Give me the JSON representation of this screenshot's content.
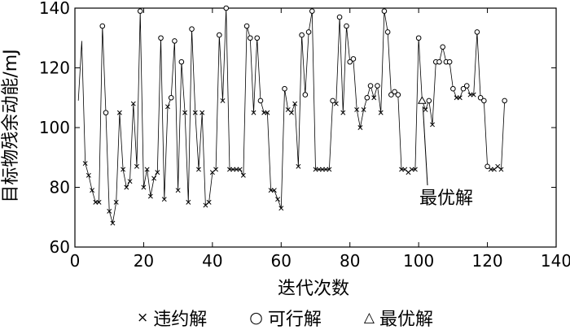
{
  "chart_data": {
    "type": "scatter",
    "xlabel": "迭代次数",
    "ylabel": "目标物残余动能/mJ",
    "xlim": [
      0,
      140
    ],
    "ylim": [
      60,
      140
    ],
    "xticks": [
      0,
      20,
      40,
      60,
      80,
      100,
      120,
      140
    ],
    "yticks": [
      60,
      80,
      100,
      120,
      140
    ],
    "grid": false,
    "legend_position": "bottom",
    "annotation": {
      "text": "最优解",
      "x": 101,
      "y": 109
    },
    "line": [
      [
        1,
        109
      ],
      [
        2,
        129
      ],
      [
        3,
        88
      ],
      [
        4,
        84
      ],
      [
        5,
        79
      ],
      [
        6,
        75
      ],
      [
        7,
        75
      ],
      [
        8,
        134
      ],
      [
        9,
        105
      ],
      [
        10,
        72
      ],
      [
        11,
        68
      ],
      [
        12,
        75
      ],
      [
        13,
        105
      ],
      [
        14,
        86
      ],
      [
        15,
        80
      ],
      [
        16,
        82
      ],
      [
        17,
        108
      ],
      [
        18,
        87
      ],
      [
        19,
        139
      ],
      [
        20,
        80
      ],
      [
        21,
        86
      ],
      [
        22,
        77
      ],
      [
        23,
        83
      ],
      [
        24,
        85
      ],
      [
        25,
        130
      ],
      [
        26,
        76
      ],
      [
        27,
        107
      ],
      [
        28,
        110
      ],
      [
        29,
        129
      ],
      [
        30,
        79
      ],
      [
        31,
        122
      ],
      [
        32,
        105
      ],
      [
        33,
        75
      ],
      [
        34,
        133
      ],
      [
        35,
        105
      ],
      [
        36,
        86
      ],
      [
        37,
        105
      ],
      [
        38,
        74
      ],
      [
        39,
        75
      ],
      [
        40,
        85
      ],
      [
        41,
        86
      ],
      [
        42,
        131
      ],
      [
        43,
        109
      ],
      [
        44,
        140
      ],
      [
        45,
        86
      ],
      [
        46,
        86
      ],
      [
        47,
        86
      ],
      [
        48,
        86
      ],
      [
        49,
        84
      ],
      [
        50,
        134
      ],
      [
        51,
        130
      ],
      [
        52,
        105
      ],
      [
        53,
        130
      ],
      [
        54,
        109
      ],
      [
        55,
        105
      ],
      [
        56,
        105
      ],
      [
        57,
        79
      ],
      [
        58,
        79
      ],
      [
        59,
        76
      ],
      [
        60,
        73
      ],
      [
        61,
        113
      ],
      [
        62,
        106
      ],
      [
        63,
        105
      ],
      [
        64,
        108
      ],
      [
        65,
        87
      ],
      [
        66,
        131
      ],
      [
        67,
        111
      ],
      [
        68,
        132
      ],
      [
        69,
        139
      ],
      [
        70,
        86
      ],
      [
        71,
        86
      ],
      [
        72,
        86
      ],
      [
        73,
        86
      ],
      [
        74,
        86
      ],
      [
        75,
        109
      ],
      [
        76,
        108
      ],
      [
        77,
        137
      ],
      [
        78,
        105
      ],
      [
        79,
        134
      ],
      [
        80,
        122
      ],
      [
        81,
        123
      ],
      [
        82,
        106
      ],
      [
        83,
        100
      ],
      [
        84,
        106
      ],
      [
        85,
        110
      ],
      [
        86,
        114
      ],
      [
        87,
        110
      ],
      [
        88,
        114
      ],
      [
        89,
        105
      ],
      [
        90,
        139
      ],
      [
        91,
        132
      ],
      [
        92,
        111
      ],
      [
        93,
        112
      ],
      [
        94,
        111
      ],
      [
        95,
        86
      ],
      [
        96,
        86
      ],
      [
        97,
        85
      ],
      [
        98,
        86
      ],
      [
        99,
        86
      ],
      [
        100,
        130
      ],
      [
        101,
        109
      ],
      [
        102,
        106
      ],
      [
        103,
        109
      ],
      [
        104,
        101
      ],
      [
        105,
        122
      ],
      [
        106,
        122
      ],
      [
        107,
        127
      ],
      [
        108,
        122
      ],
      [
        109,
        122
      ],
      [
        110,
        113
      ],
      [
        111,
        110
      ],
      [
        112,
        110
      ],
      [
        113,
        113
      ],
      [
        114,
        114
      ],
      [
        115,
        111
      ],
      [
        116,
        111
      ],
      [
        117,
        132
      ],
      [
        118,
        110
      ],
      [
        119,
        109
      ],
      [
        120,
        87
      ],
      [
        121,
        86
      ],
      [
        122,
        86
      ],
      [
        123,
        87
      ],
      [
        124,
        86
      ],
      [
        125,
        109
      ]
    ],
    "series": [
      {
        "name": "违约解",
        "marker": "x",
        "points": [
          [
            3,
            88
          ],
          [
            4,
            84
          ],
          [
            5,
            79
          ],
          [
            6,
            75
          ],
          [
            7,
            75
          ],
          [
            10,
            72
          ],
          [
            11,
            68
          ],
          [
            12,
            75
          ],
          [
            13,
            105
          ],
          [
            14,
            86
          ],
          [
            15,
            80
          ],
          [
            16,
            82
          ],
          [
            17,
            108
          ],
          [
            18,
            87
          ],
          [
            20,
            80
          ],
          [
            21,
            86
          ],
          [
            22,
            77
          ],
          [
            23,
            83
          ],
          [
            24,
            85
          ],
          [
            26,
            76
          ],
          [
            27,
            107
          ],
          [
            30,
            79
          ],
          [
            32,
            105
          ],
          [
            33,
            75
          ],
          [
            35,
            105
          ],
          [
            36,
            86
          ],
          [
            37,
            105
          ],
          [
            38,
            74
          ],
          [
            39,
            75
          ],
          [
            40,
            85
          ],
          [
            41,
            86
          ],
          [
            43,
            109
          ],
          [
            45,
            86
          ],
          [
            46,
            86
          ],
          [
            47,
            86
          ],
          [
            48,
            86
          ],
          [
            49,
            84
          ],
          [
            52,
            105
          ],
          [
            55,
            105
          ],
          [
            56,
            105
          ],
          [
            57,
            79
          ],
          [
            58,
            79
          ],
          [
            59,
            76
          ],
          [
            60,
            73
          ],
          [
            62,
            106
          ],
          [
            63,
            105
          ],
          [
            64,
            108
          ],
          [
            65,
            87
          ],
          [
            70,
            86
          ],
          [
            71,
            86
          ],
          [
            72,
            86
          ],
          [
            73,
            86
          ],
          [
            74,
            86
          ],
          [
            76,
            108
          ],
          [
            78,
            105
          ],
          [
            82,
            106
          ],
          [
            83,
            100
          ],
          [
            84,
            106
          ],
          [
            87,
            110
          ],
          [
            89,
            105
          ],
          [
            95,
            86
          ],
          [
            96,
            86
          ],
          [
            97,
            85
          ],
          [
            98,
            86
          ],
          [
            99,
            86
          ],
          [
            102,
            106
          ],
          [
            104,
            101
          ],
          [
            111,
            110
          ],
          [
            112,
            110
          ],
          [
            115,
            111
          ],
          [
            116,
            111
          ],
          [
            121,
            86
          ],
          [
            122,
            86
          ],
          [
            123,
            87
          ],
          [
            124,
            86
          ]
        ]
      },
      {
        "name": "可行解",
        "marker": "circle",
        "points": [
          [
            8,
            134
          ],
          [
            9,
            105
          ],
          [
            19,
            139
          ],
          [
            25,
            130
          ],
          [
            28,
            110
          ],
          [
            29,
            129
          ],
          [
            31,
            122
          ],
          [
            34,
            133
          ],
          [
            42,
            131
          ],
          [
            44,
            140
          ],
          [
            50,
            134
          ],
          [
            51,
            130
          ],
          [
            53,
            130
          ],
          [
            54,
            109
          ],
          [
            61,
            113
          ],
          [
            66,
            131
          ],
          [
            67,
            111
          ],
          [
            68,
            132
          ],
          [
            69,
            139
          ],
          [
            75,
            109
          ],
          [
            77,
            137
          ],
          [
            79,
            134
          ],
          [
            80,
            122
          ],
          [
            81,
            123
          ],
          [
            85,
            110
          ],
          [
            86,
            114
          ],
          [
            88,
            114
          ],
          [
            90,
            139
          ],
          [
            91,
            132
          ],
          [
            92,
            111
          ],
          [
            93,
            112
          ],
          [
            94,
            111
          ],
          [
            100,
            130
          ],
          [
            103,
            109
          ],
          [
            105,
            122
          ],
          [
            106,
            122
          ],
          [
            107,
            127
          ],
          [
            108,
            122
          ],
          [
            109,
            122
          ],
          [
            110,
            113
          ],
          [
            113,
            113
          ],
          [
            114,
            114
          ],
          [
            117,
            132
          ],
          [
            118,
            110
          ],
          [
            119,
            109
          ],
          [
            120,
            87
          ],
          [
            125,
            109
          ]
        ]
      },
      {
        "name": "最优解",
        "marker": "triangle",
        "points": [
          [
            101,
            109
          ]
        ]
      }
    ],
    "legend_symbols": {
      "x": "×",
      "circle": "○",
      "triangle": "△"
    }
  }
}
